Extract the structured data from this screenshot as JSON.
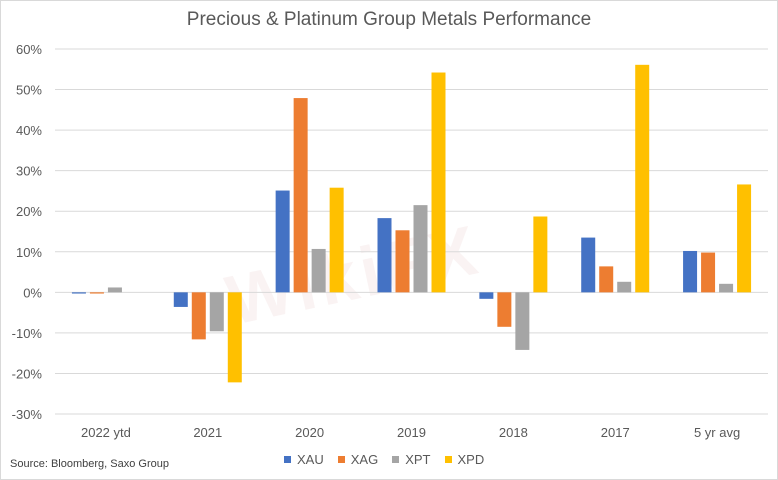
{
  "chart_data": {
    "type": "bar",
    "title": "Precious & Platinum Group Metals Performance",
    "xlabel": "",
    "ylabel": "",
    "ylim": [
      -30,
      60
    ],
    "yticks": [
      60,
      50,
      40,
      30,
      20,
      10,
      0,
      -10,
      -20,
      -30
    ],
    "ytick_labels": [
      "60%",
      "50%",
      "40%",
      "30%",
      "20%",
      "10%",
      "0%",
      "-10%",
      "-20%",
      "-30%"
    ],
    "grid": true,
    "legend_position": "bottom",
    "categories": [
      "2022 ytd",
      "2021",
      "2020",
      "2019",
      "2018",
      "2017",
      "5 yr avg"
    ],
    "series": [
      {
        "name": "XAU",
        "color": "#4472c4",
        "values": [
          -0.3,
          -3.6,
          25.1,
          18.3,
          -1.6,
          13.5,
          10.2
        ]
      },
      {
        "name": "XAG",
        "color": "#ed7d31",
        "values": [
          -0.3,
          -11.6,
          47.9,
          15.3,
          -8.5,
          6.4,
          9.8
        ]
      },
      {
        "name": "XPT",
        "color": "#a5a5a5",
        "values": [
          1.2,
          -9.6,
          10.7,
          21.5,
          -14.2,
          2.6,
          2.1
        ]
      },
      {
        "name": "XPD",
        "color": "#ffc000",
        "values": [
          0.0,
          -22.2,
          25.8,
          54.2,
          18.7,
          56.1,
          26.6
        ]
      }
    ]
  },
  "source": "Source: Bloomberg, Saxo Group",
  "watermark": "WikiFX"
}
